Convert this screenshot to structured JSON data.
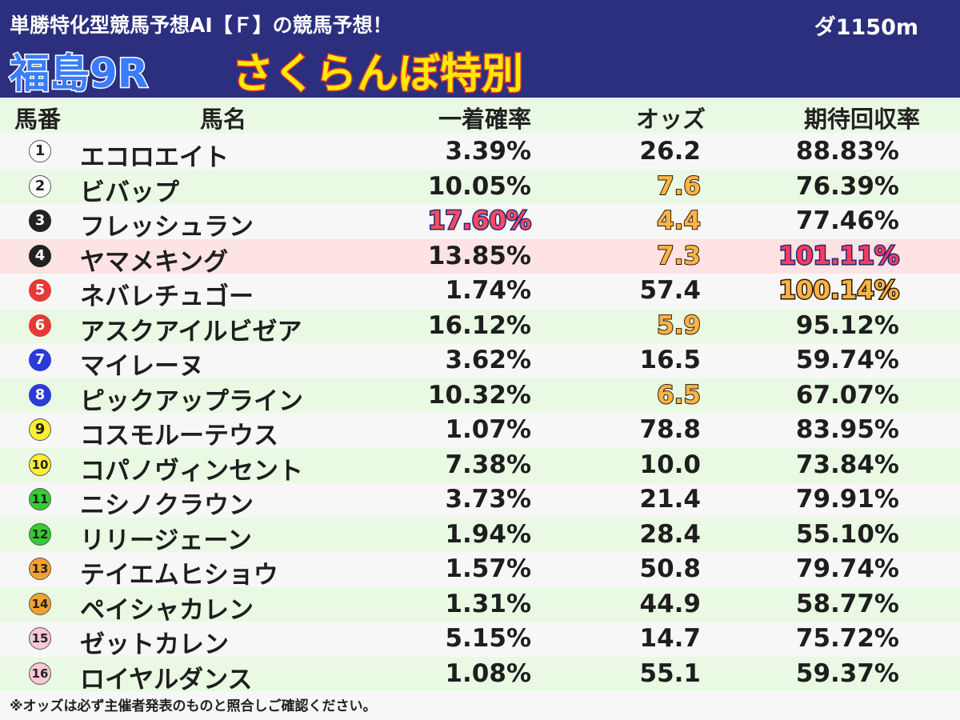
{
  "header": {
    "subtitle": "単勝特化型競馬予想AI【Ｆ】の競馬予想！",
    "distance": "ダ1150m",
    "race": "福島9R",
    "race_name": "さくらんぼ特別"
  },
  "columns": {
    "number": "馬番",
    "name": "馬名",
    "win_prob": "一着確率",
    "odds": "オッズ",
    "expected_return": "期待回収率"
  },
  "horses": [
    {
      "num": "1",
      "name": "エコロエイト",
      "prob": "3.39%",
      "odds": "26.2",
      "ev": "88.83%",
      "bg": "#ffffff",
      "fg": "#222222",
      "border": "#555555"
    },
    {
      "num": "2",
      "name": "ビバップ",
      "prob": "10.05%",
      "odds": "7.6",
      "ev": "76.39%",
      "bg": "#ffffff",
      "fg": "#222222",
      "border": "#555555"
    },
    {
      "num": "3",
      "name": "フレッシュラン",
      "prob": "17.60%",
      "odds": "4.4",
      "ev": "77.46%",
      "bg": "#222222",
      "fg": "#ffffff",
      "border": "#222222"
    },
    {
      "num": "4",
      "name": "ヤマメキング",
      "prob": "13.85%",
      "odds": "7.3",
      "ev": "101.11%",
      "bg": "#222222",
      "fg": "#ffffff",
      "border": "#222222"
    },
    {
      "num": "5",
      "name": "ネバレチュゴー",
      "prob": "1.74%",
      "odds": "57.4",
      "ev": "100.14%",
      "bg": "#e53935",
      "fg": "#ffffff",
      "border": "#e53935"
    },
    {
      "num": "6",
      "name": "アスクアイルビゼア",
      "prob": "16.12%",
      "odds": "5.9",
      "ev": "95.12%",
      "bg": "#e53935",
      "fg": "#ffffff",
      "border": "#e53935"
    },
    {
      "num": "7",
      "name": "マイレーヌ",
      "prob": "3.62%",
      "odds": "16.5",
      "ev": "59.74%",
      "bg": "#2a3bd6",
      "fg": "#ffffff",
      "border": "#2a3bd6"
    },
    {
      "num": "8",
      "name": "ピックアップライン",
      "prob": "10.32%",
      "odds": "6.5",
      "ev": "67.07%",
      "bg": "#2a3bd6",
      "fg": "#ffffff",
      "border": "#2a3bd6"
    },
    {
      "num": "9",
      "name": "コスモルーテウス",
      "prob": "1.07%",
      "odds": "78.8",
      "ev": "83.95%",
      "bg": "#ffee33",
      "fg": "#222222",
      "border": "#555555"
    },
    {
      "num": "10",
      "name": "コパノヴィンセント",
      "prob": "7.38%",
      "odds": "10.0",
      "ev": "73.84%",
      "bg": "#ffee33",
      "fg": "#222222",
      "border": "#555555"
    },
    {
      "num": "11",
      "name": "ニシノクラウン",
      "prob": "3.73%",
      "odds": "21.4",
      "ev": "79.91%",
      "bg": "#33cc33",
      "fg": "#222222",
      "border": "#555555"
    },
    {
      "num": "12",
      "name": "リリージェーン",
      "prob": "1.94%",
      "odds": "28.4",
      "ev": "55.10%",
      "bg": "#33cc33",
      "fg": "#222222",
      "border": "#555555"
    },
    {
      "num": "13",
      "name": "テイエムヒショウ",
      "prob": "1.57%",
      "odds": "50.8",
      "ev": "79.74%",
      "bg": "#f5a030",
      "fg": "#222222",
      "border": "#555555"
    },
    {
      "num": "14",
      "name": "ペイシャカレン",
      "prob": "1.31%",
      "odds": "44.9",
      "ev": "58.77%",
      "bg": "#f5a030",
      "fg": "#222222",
      "border": "#555555"
    },
    {
      "num": "15",
      "name": "ゼットカレン",
      "prob": "5.15%",
      "odds": "14.7",
      "ev": "75.72%",
      "bg": "#f8c8d4",
      "fg": "#222222",
      "border": "#555555"
    },
    {
      "num": "16",
      "name": "ロイヤルダンス",
      "prob": "1.08%",
      "odds": "55.1",
      "ev": "59.37%",
      "bg": "#f8c8d4",
      "fg": "#222222",
      "border": "#555555"
    }
  ],
  "footnote": "※オッズは必ず主催者発表のものと照合しご確認ください。"
}
